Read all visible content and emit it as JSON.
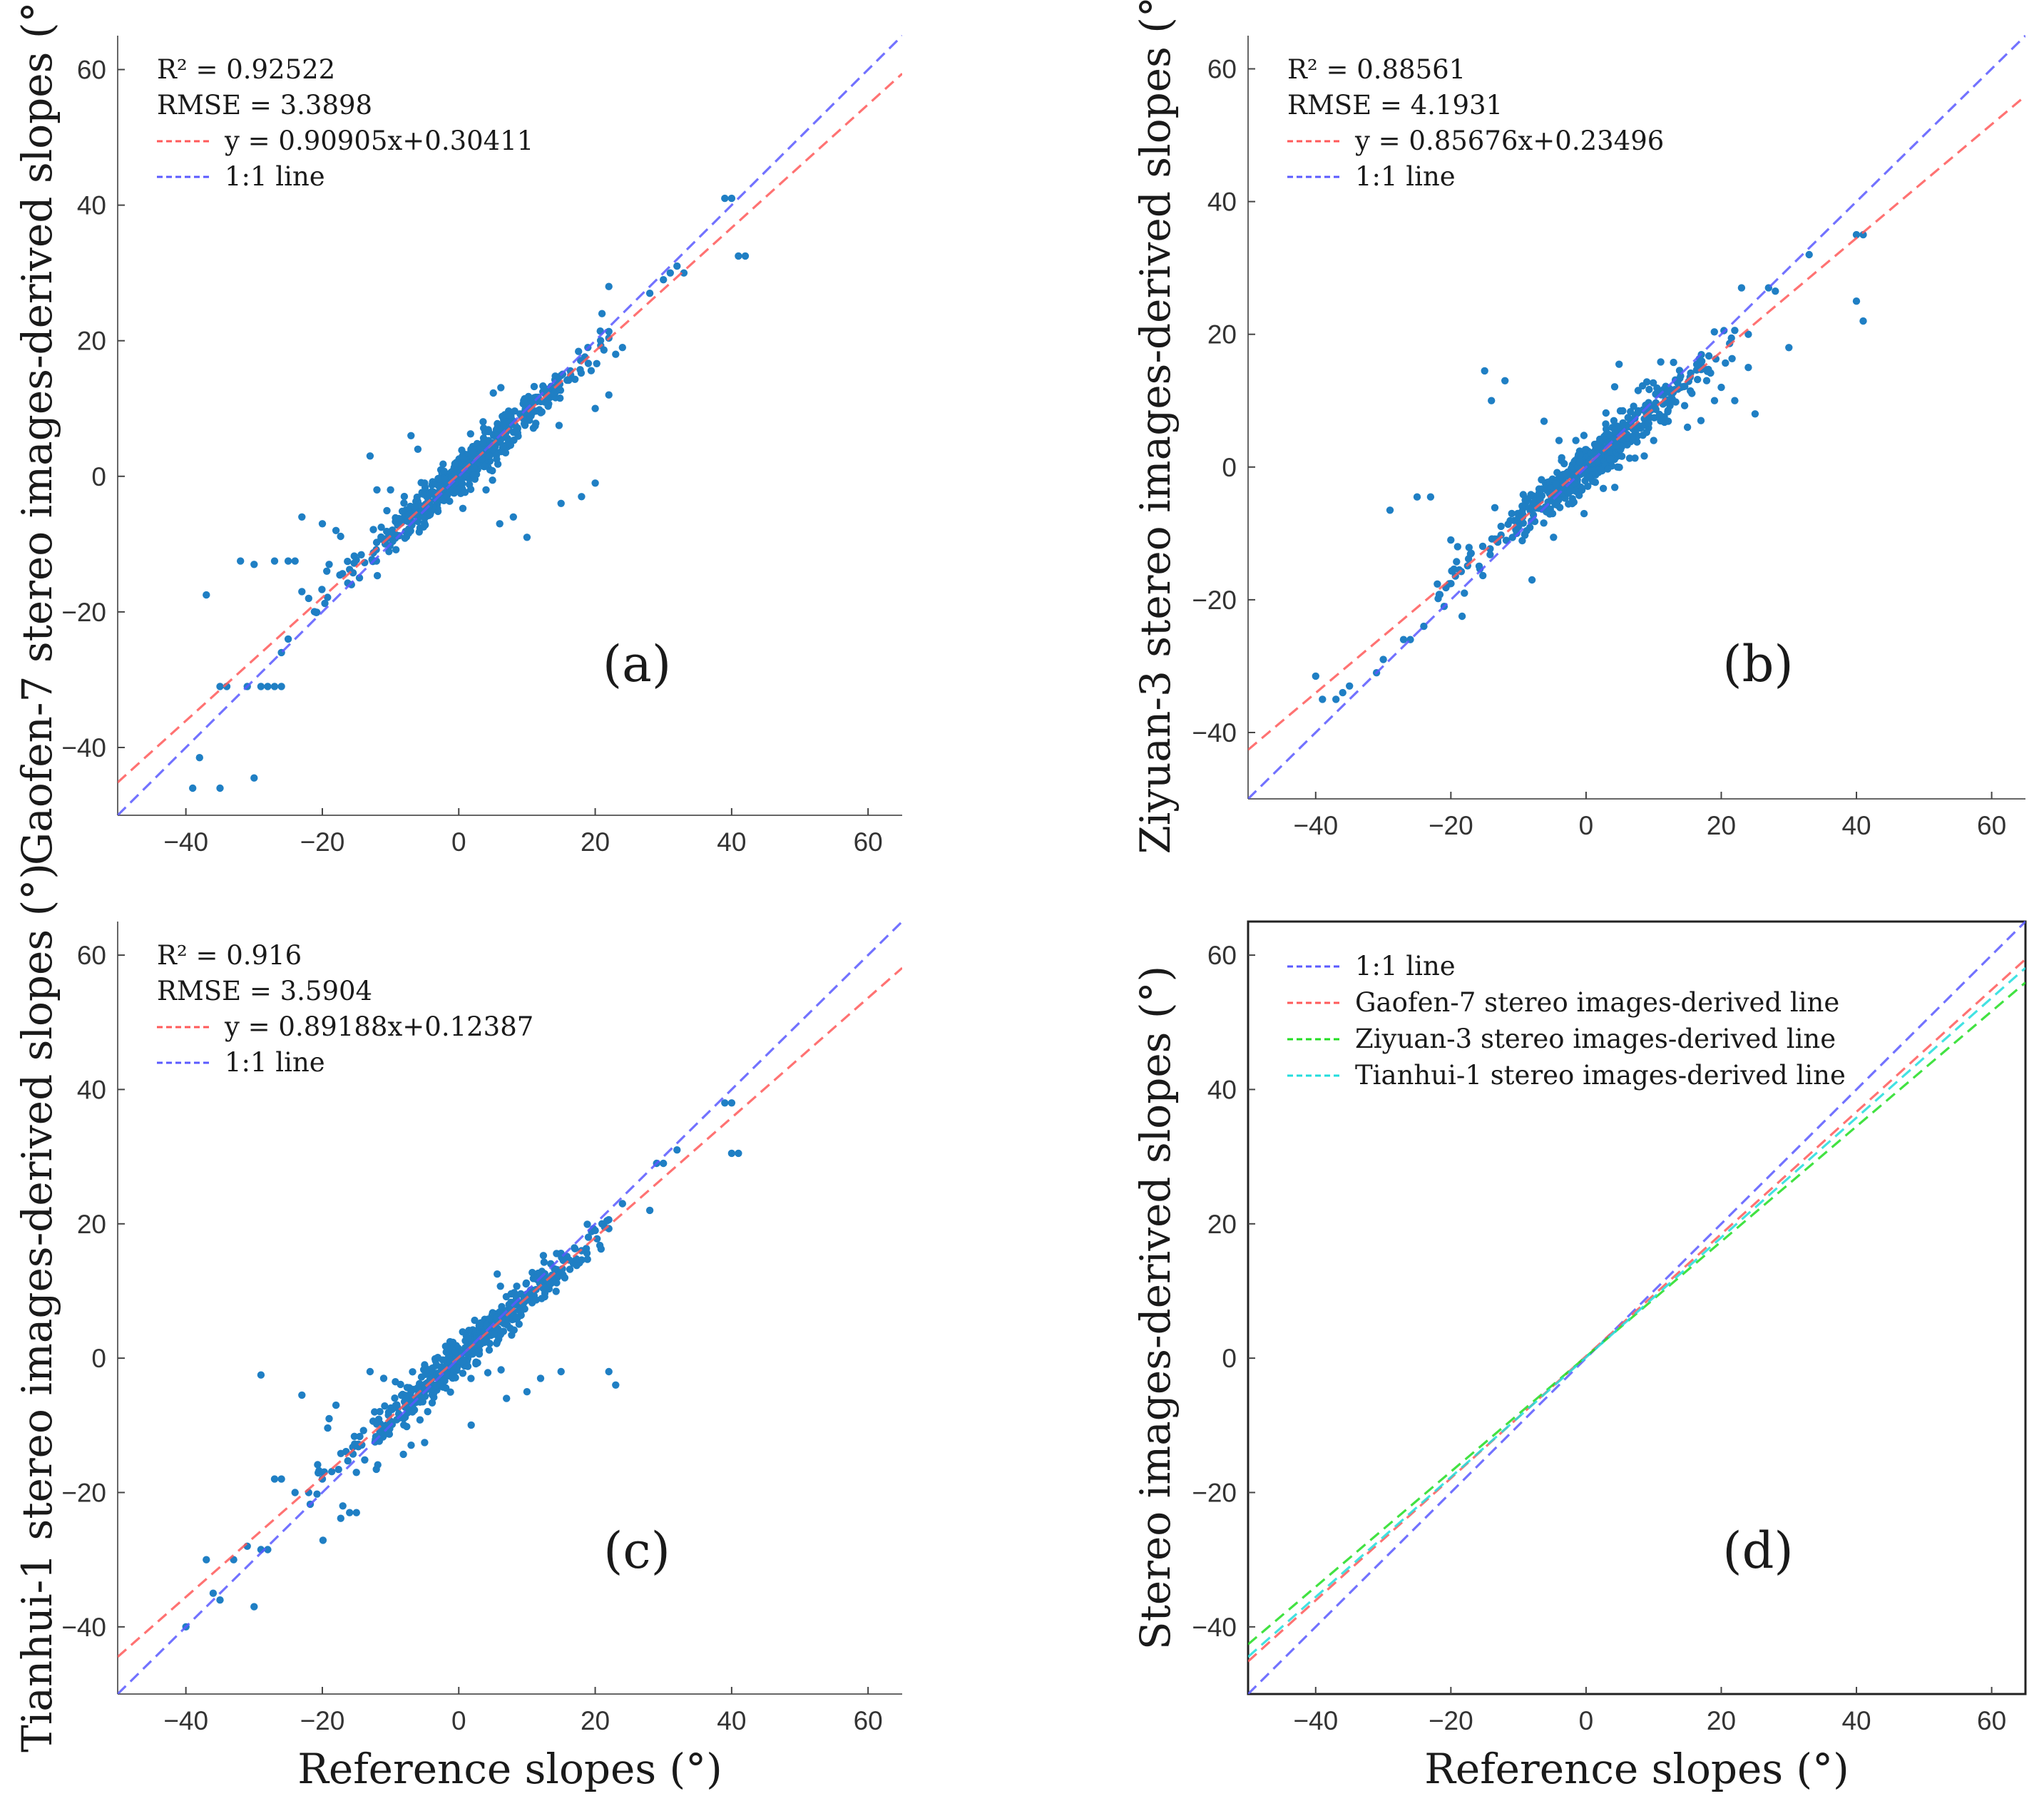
{
  "figure": {
    "xlabel": "Reference slopes (°)",
    "colors": {
      "points": "#1f7fc4",
      "fit_red": "#ff5a5a",
      "one_to_one": "#5a5aff",
      "ziyuan": "#22dd22",
      "tianhui": "#22dddd"
    }
  },
  "chart_data": [
    {
      "id": "a",
      "type": "scatter",
      "panel_label": "(a)",
      "xlabel": "",
      "ylabel": "Gaofen-7 stereo images-derived slopes (°)",
      "xlim": [
        -50,
        65
      ],
      "ylim": [
        -50,
        65
      ],
      "xticks": [
        "−40",
        "−20",
        "0",
        "20",
        "40",
        "60"
      ],
      "yticks": [
        "−40",
        "−20",
        "0",
        "20",
        "40",
        "60"
      ],
      "stats": {
        "r2": "R² = 0.92522",
        "rmse": "RMSE = 3.3898"
      },
      "legend": [
        "y = 0.90905x+0.30411",
        "1:1 line"
      ],
      "fit": {
        "slope": 0.90905,
        "intercept": 0.30411
      },
      "seed": 11,
      "scatter": {
        "n": 520,
        "sd": 2.3,
        "outlier_sd": 6
      },
      "points": [
        [
          -37,
          -17.5
        ],
        [
          -39,
          -46
        ],
        [
          -35,
          -46
        ],
        [
          -38,
          -41.5
        ],
        [
          -35,
          -31
        ],
        [
          -34,
          -31
        ],
        [
          -31,
          -31
        ],
        [
          -29,
          -31
        ],
        [
          -28,
          -31
        ],
        [
          -27,
          -31
        ],
        [
          -26,
          -31
        ],
        [
          -26,
          -26
        ],
        [
          -32,
          -12.5
        ],
        [
          -30,
          -13
        ],
        [
          -27,
          -12.5
        ],
        [
          -25,
          -12.5
        ],
        [
          -24,
          -12.5
        ],
        [
          -23,
          -6
        ],
        [
          -23,
          -17
        ],
        [
          -22,
          -18
        ],
        [
          -20,
          -7
        ],
        [
          -30,
          -44.5
        ],
        [
          -25,
          -24
        ],
        [
          -19,
          -13
        ],
        [
          -18,
          -8
        ],
        [
          -13,
          3
        ],
        [
          -12,
          -2
        ],
        [
          -10,
          -2
        ],
        [
          -7,
          6
        ],
        [
          -6,
          4
        ],
        [
          -5,
          -1
        ],
        [
          4,
          -2
        ],
        [
          6,
          -7
        ],
        [
          8,
          -6
        ],
        [
          10,
          -9
        ],
        [
          15,
          -4
        ],
        [
          18,
          -3
        ],
        [
          20,
          -1
        ],
        [
          22,
          12
        ],
        [
          21,
          24
        ],
        [
          22,
          28
        ],
        [
          23,
          18
        ],
        [
          24,
          19
        ],
        [
          20,
          10
        ],
        [
          28,
          27
        ],
        [
          30,
          29
        ],
        [
          31,
          30
        ],
        [
          32,
          31
        ],
        [
          33,
          30
        ],
        [
          39,
          41
        ],
        [
          40,
          41
        ],
        [
          41,
          32.5
        ],
        [
          42,
          32.5
        ]
      ]
    },
    {
      "id": "b",
      "type": "scatter",
      "panel_label": "(b)",
      "xlabel": "",
      "ylabel": "Ziyuan-3 stereo images-derived slopes (°)",
      "xlim": [
        -50,
        65
      ],
      "ylim": [
        -50,
        65
      ],
      "xticks": [
        "−40",
        "−20",
        "0",
        "20",
        "40",
        "60"
      ],
      "yticks": [
        "−40",
        "−20",
        "0",
        "20",
        "40",
        "60"
      ],
      "stats": {
        "r2": "R² = 0.88561",
        "rmse": "RMSE = 4.1931"
      },
      "legend": [
        "y = 0.85676x+0.23496",
        "1:1 line"
      ],
      "fit": {
        "slope": 0.85676,
        "intercept": 0.23496
      },
      "seed": 23,
      "scatter": {
        "n": 520,
        "sd": 2.6,
        "outlier_sd": 7
      },
      "points": [
        [
          -40,
          -31.5
        ],
        [
          -39,
          -35
        ],
        [
          -37,
          -35
        ],
        [
          -36,
          -34
        ],
        [
          -35,
          -33
        ],
        [
          -31,
          -31
        ],
        [
          -30,
          -29
        ],
        [
          -29,
          -6.5
        ],
        [
          -27,
          -26
        ],
        [
          -26,
          -26
        ],
        [
          -25,
          -4.5
        ],
        [
          -24,
          -24
        ],
        [
          -23,
          -4.5
        ],
        [
          -21,
          -21
        ],
        [
          -20,
          -11
        ],
        [
          -19,
          -12
        ],
        [
          -18,
          -19
        ],
        [
          -17,
          -13
        ],
        [
          -15,
          14.5
        ],
        [
          -14,
          10
        ],
        [
          -12,
          13
        ],
        [
          -11,
          -7
        ],
        [
          -10,
          -9
        ],
        [
          -9,
          -5
        ],
        [
          -8,
          -17
        ],
        [
          -6,
          -6
        ],
        [
          -4,
          4
        ],
        [
          10,
          4
        ],
        [
          15,
          6
        ],
        [
          17,
          7
        ],
        [
          19,
          10
        ],
        [
          20,
          12
        ],
        [
          22,
          10
        ],
        [
          23,
          27
        ],
        [
          24,
          20
        ],
        [
          24,
          15
        ],
        [
          25,
          8
        ],
        [
          27,
          27
        ],
        [
          28,
          26.5
        ],
        [
          30,
          18
        ],
        [
          33,
          32
        ],
        [
          40,
          35
        ],
        [
          41,
          35
        ],
        [
          40,
          25
        ],
        [
          41,
          22
        ]
      ]
    },
    {
      "id": "c",
      "type": "scatter",
      "panel_label": "(c)",
      "xlabel": "Reference slopes (°)",
      "ylabel": "Tianhui-1 stereo images-derived slopes (°)",
      "xlim": [
        -50,
        65
      ],
      "ylim": [
        -50,
        65
      ],
      "xticks": [
        "−40",
        "−20",
        "0",
        "20",
        "40",
        "60"
      ],
      "yticks": [
        "−40",
        "−20",
        "0",
        "20",
        "40",
        "60"
      ],
      "stats": {
        "r2": "R² = 0.916",
        "rmse": "RMSE = 3.5904"
      },
      "legend": [
        "y = 0.89188x+0.12387",
        "1:1 line"
      ],
      "fit": {
        "slope": 0.89188,
        "intercept": 0.12387
      },
      "seed": 37,
      "scatter": {
        "n": 520,
        "sd": 2.4,
        "outlier_sd": 6
      },
      "points": [
        [
          -40,
          -40
        ],
        [
          -37,
          -30
        ],
        [
          -36,
          -35
        ],
        [
          -35,
          -36
        ],
        [
          -33,
          -30
        ],
        [
          -31,
          -28
        ],
        [
          -30,
          -37
        ],
        [
          -29,
          -28.5
        ],
        [
          -28,
          -28.5
        ],
        [
          -27,
          -18
        ],
        [
          -26,
          -18
        ],
        [
          -29,
          -2.5
        ],
        [
          -23,
          -5.5
        ],
        [
          -24,
          -20
        ],
        [
          -22,
          -20
        ],
        [
          -20,
          -18
        ],
        [
          -19,
          -9
        ],
        [
          -18,
          -7
        ],
        [
          -17,
          -22
        ],
        [
          -16,
          -23
        ],
        [
          -15,
          -23
        ],
        [
          -13,
          -2
        ],
        [
          -11,
          -3
        ],
        [
          -7,
          -5
        ],
        [
          -5,
          -1
        ],
        [
          7,
          -6
        ],
        [
          10,
          -5
        ],
        [
          12,
          -3
        ],
        [
          15,
          -2
        ],
        [
          22,
          -2
        ],
        [
          23,
          -4
        ],
        [
          20,
          19
        ],
        [
          21,
          20
        ],
        [
          19,
          18
        ],
        [
          18,
          16
        ],
        [
          24,
          23
        ],
        [
          28,
          22
        ],
        [
          29,
          29
        ],
        [
          30,
          29
        ],
        [
          32,
          31
        ],
        [
          39,
          38
        ],
        [
          40,
          38
        ],
        [
          41,
          30.5
        ],
        [
          40,
          30.5
        ]
      ]
    },
    {
      "id": "d",
      "type": "line",
      "panel_label": "(d)",
      "xlabel": "Reference slopes (°)",
      "ylabel": "Stereo images-derived slopes (°)",
      "xlim": [
        -50,
        65
      ],
      "ylim": [
        -50,
        65
      ],
      "xticks": [
        "−40",
        "−20",
        "0",
        "20",
        "40",
        "60"
      ],
      "yticks": [
        "−40",
        "−20",
        "0",
        "20",
        "40",
        "60"
      ],
      "series": [
        {
          "name": "1:1 line",
          "slope": 1,
          "intercept": 0,
          "color": "#5a5aff"
        },
        {
          "name": "Gaofen-7 stereo images-derived line",
          "slope": 0.90905,
          "intercept": 0.30411,
          "color": "#ff5a5a"
        },
        {
          "name": "Ziyuan-3 stereo images-derived line",
          "slope": 0.85676,
          "intercept": 0.23496,
          "color": "#22dd22"
        },
        {
          "name": "Tianhui-1 stereo images-derived line",
          "slope": 0.89188,
          "intercept": 0.12387,
          "color": "#22dddd"
        }
      ]
    }
  ]
}
